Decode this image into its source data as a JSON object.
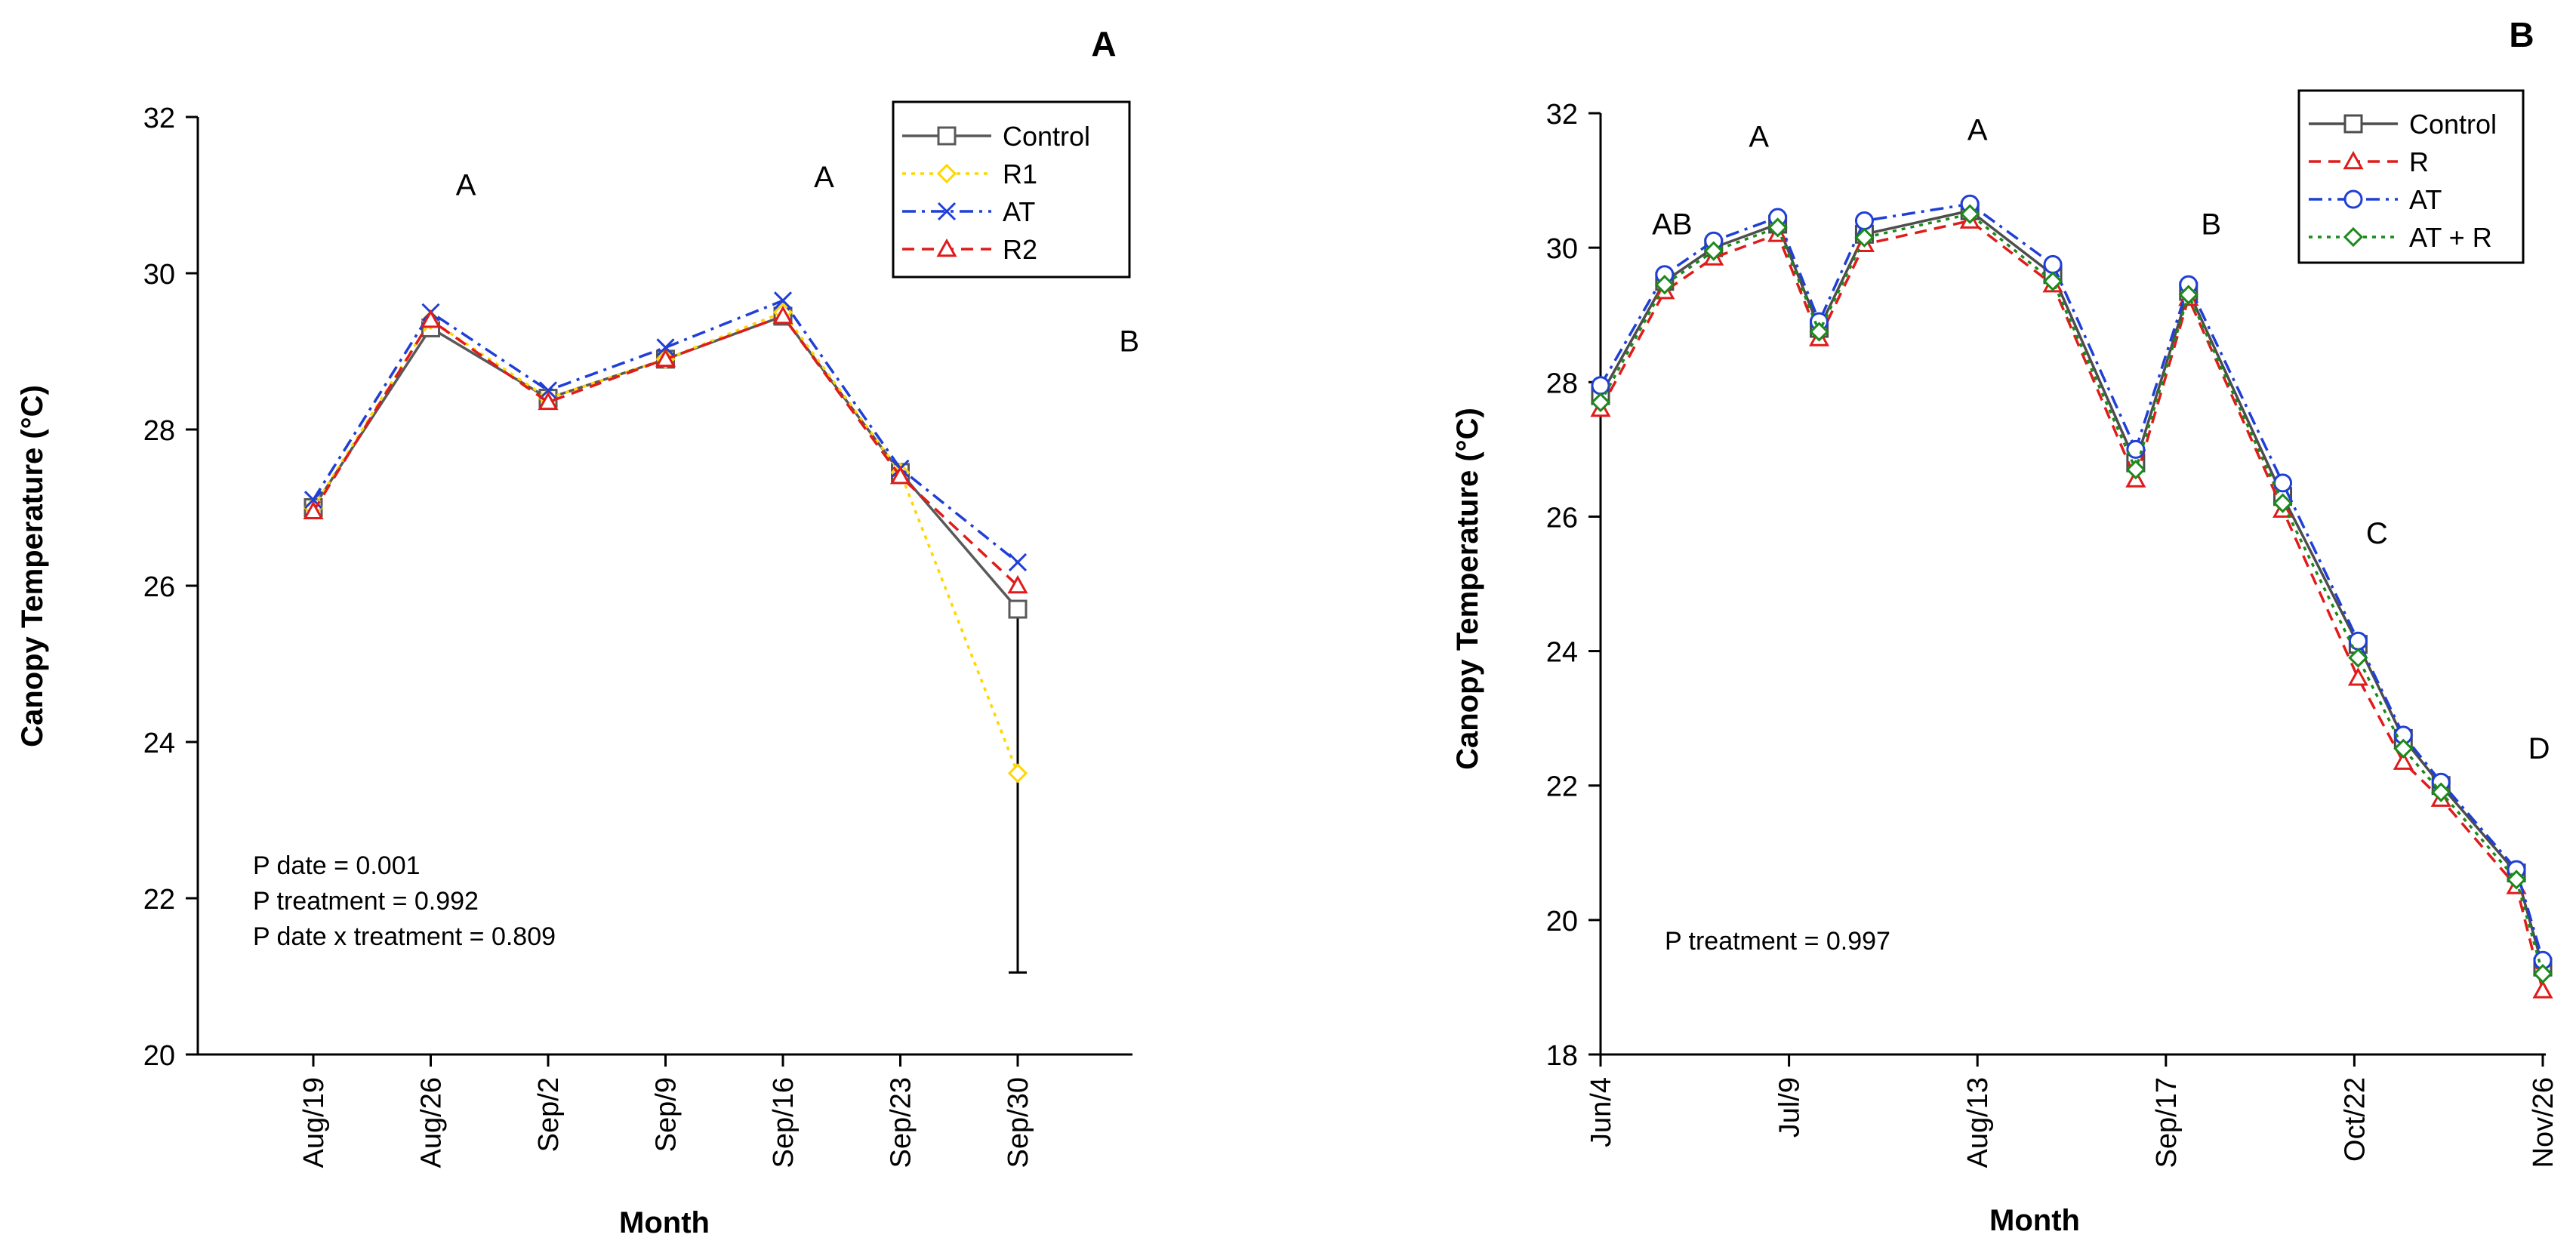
{
  "chart_data": [
    {
      "type": "line",
      "panel_label": "A",
      "xlabel": "Month",
      "ylabel": "Canopy Temperature (°C)",
      "ylim": [
        20,
        32
      ],
      "y_ticks": [
        "20",
        "22",
        "24",
        "26",
        "28",
        "30",
        "32"
      ],
      "categories": [
        "Aug/19",
        "Aug/26",
        "Sep/2",
        "Sep/9",
        "Sep/16",
        "Sep/23",
        "Sep/30"
      ],
      "series": [
        {
          "name": "Control",
          "color": "#595959",
          "marker": "square",
          "dash": "solid",
          "values": [
            27.0,
            29.3,
            28.4,
            28.9,
            29.45,
            27.45,
            25.7
          ],
          "error_bars": [
            {
              "index": 6,
              "low": 21.05,
              "high": 25.7
            }
          ]
        },
        {
          "name": "R1",
          "color": "#FFD700",
          "marker": "diamond",
          "dash": "dot",
          "values": [
            27.0,
            29.4,
            28.4,
            28.9,
            29.5,
            27.45,
            23.6
          ]
        },
        {
          "name": "AT",
          "color": "#1f3fd6",
          "marker": "x",
          "dash": "dashdot",
          "values": [
            27.1,
            29.5,
            28.5,
            29.05,
            29.65,
            27.5,
            26.3
          ]
        },
        {
          "name": "R2",
          "color": "#e01b1b",
          "marker": "triangle",
          "dash": "dash",
          "values": [
            26.95,
            29.4,
            28.35,
            28.9,
            29.45,
            27.4,
            26.0
          ]
        }
      ],
      "group_letters": [
        {
          "text": "A",
          "x": 1.3,
          "y": 31.0
        },
        {
          "text": "A",
          "x": 4.35,
          "y": 31.1
        },
        {
          "text": "B",
          "x": 6.95,
          "y": 29.0
        }
      ],
      "annotations": [
        "P date = 0.001",
        "P treatment = 0.992",
        "P date x treatment = 0.809"
      ],
      "legend_position": "top-right"
    },
    {
      "type": "line",
      "panel_label": "B",
      "xlabel": "Month",
      "ylabel": "Canopy Temperature (°C)",
      "ylim": [
        18,
        32
      ],
      "y_ticks": [
        "18",
        "20",
        "22",
        "24",
        "26",
        "28",
        "30",
        "32"
      ],
      "x_ticks": [
        {
          "label": "Jun/4",
          "pos": 0
        },
        {
          "label": "Jul/9",
          "pos": 5
        },
        {
          "label": "Aug/13",
          "pos": 10
        },
        {
          "label": "Sep/17",
          "pos": 15
        },
        {
          "label": "Oct/22",
          "pos": 20
        },
        {
          "label": "Nov/26",
          "pos": 25
        }
      ],
      "x": [
        0,
        1,
        2,
        3,
        4,
        5,
        6,
        7,
        8,
        9,
        10,
        11,
        12,
        13,
        14,
        15,
        16,
        17,
        18,
        19,
        20,
        21,
        22,
        23,
        24,
        25
      ],
      "xlim": [
        0,
        25
      ],
      "series": [
        {
          "name": "Control",
          "color": "#4d4d4d",
          "marker": "square",
          "dash": "solid",
          "x": [
            0,
            1.7,
            3.0,
            4.7,
            5.8,
            7.0,
            9.8,
            12.0,
            14.2,
            15.6,
            18.1,
            20.1,
            21.3,
            22.3,
            24.3,
            25.0
          ],
          "values": [
            27.8,
            29.5,
            30.0,
            30.35,
            28.8,
            30.2,
            30.55,
            29.6,
            26.8,
            29.35,
            26.3,
            24.1,
            22.7,
            22.0,
            20.7,
            19.3
          ]
        },
        {
          "name": "R",
          "color": "#e01b1b",
          "marker": "triangle",
          "dash": "dash",
          "x": [
            0,
            1.7,
            3.0,
            4.7,
            5.8,
            7.0,
            9.8,
            12.0,
            14.2,
            15.6,
            18.1,
            20.1,
            21.3,
            22.3,
            24.3,
            25.0
          ],
          "values": [
            27.6,
            29.35,
            29.85,
            30.2,
            28.65,
            30.05,
            30.4,
            29.45,
            26.55,
            29.25,
            26.1,
            23.6,
            22.35,
            21.8,
            20.5,
            18.95
          ]
        },
        {
          "name": "AT",
          "color": "#1f3fd6",
          "marker": "circle",
          "dash": "dashdot",
          "x": [
            0,
            1.7,
            3.0,
            4.7,
            5.8,
            7.0,
            9.8,
            12.0,
            14.2,
            15.6,
            18.1,
            20.1,
            21.3,
            22.3,
            24.3,
            25.0
          ],
          "values": [
            27.95,
            29.6,
            30.1,
            30.45,
            28.9,
            30.4,
            30.65,
            29.75,
            27.0,
            29.45,
            26.5,
            24.15,
            22.75,
            22.05,
            20.75,
            19.4
          ]
        },
        {
          "name": "AT + R",
          "color": "#1a8a1a",
          "marker": "diamond",
          "dash": "dot",
          "x": [
            0,
            1.7,
            3.0,
            4.7,
            5.8,
            7.0,
            9.8,
            12.0,
            14.2,
            15.6,
            18.1,
            20.1,
            21.3,
            22.3,
            24.3,
            25.0
          ],
          "values": [
            27.7,
            29.45,
            29.95,
            30.3,
            28.75,
            30.15,
            30.5,
            29.5,
            26.7,
            29.3,
            26.2,
            23.9,
            22.55,
            21.9,
            20.6,
            19.2
          ]
        }
      ],
      "group_letters": [
        {
          "text": "AB",
          "x": 1.9,
          "y": 30.2
        },
        {
          "text": "A",
          "x": 4.2,
          "y": 31.5
        },
        {
          "text": "A",
          "x": 10.0,
          "y": 31.6
        },
        {
          "text": "B",
          "x": 16.2,
          "y": 30.2
        },
        {
          "text": "C",
          "x": 20.6,
          "y": 25.6
        },
        {
          "text": "D",
          "x": 24.9,
          "y": 22.4
        }
      ],
      "annotations": [
        "P treatment = 0.997"
      ],
      "legend_position": "top-right"
    }
  ]
}
